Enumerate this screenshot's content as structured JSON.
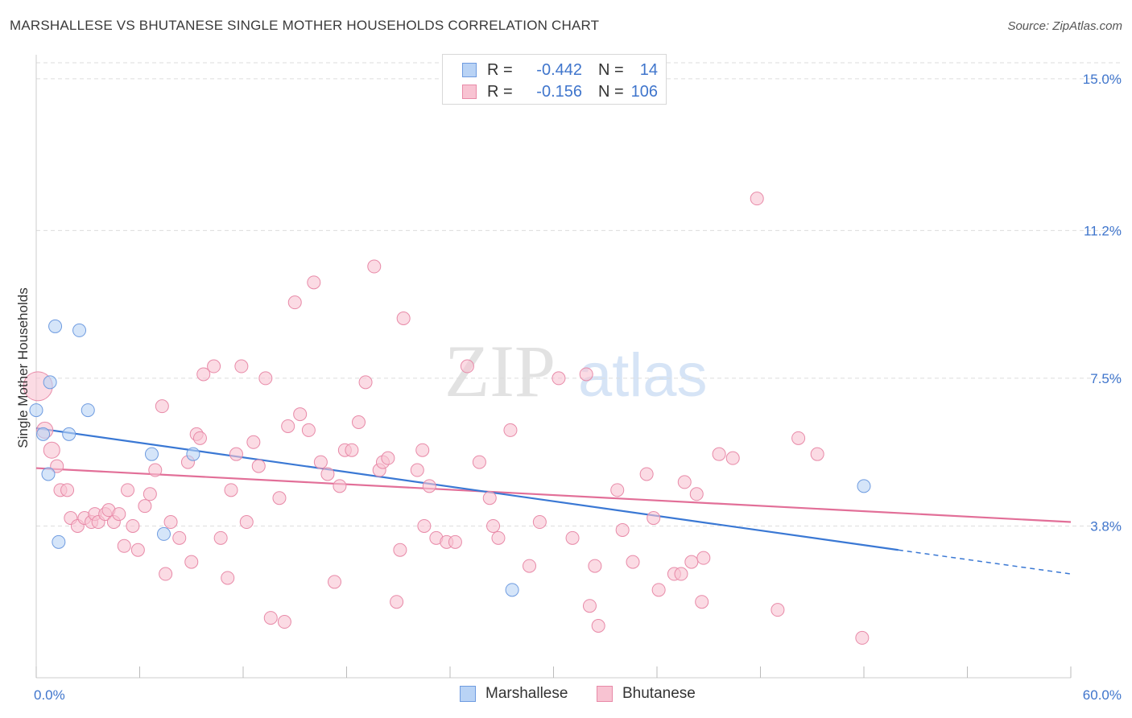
{
  "header": {
    "title": "MARSHALLESE VS BHUTANESE SINGLE MOTHER HOUSEHOLDS CORRELATION CHART",
    "source": "Source: ZipAtlas.com"
  },
  "legend_top": {
    "rows": [
      {
        "swatch_color": "#b9d3f5",
        "r_label": "R =",
        "r_value": "-0.442",
        "n_label": "N =",
        "n_value": "14"
      },
      {
        "swatch_color": "#f8c3d2",
        "r_label": "R =",
        "r_value": "-0.156",
        "n_label": "N =",
        "n_value": "106"
      }
    ]
  },
  "legend_bottom": {
    "items": [
      {
        "label": "Marshallese",
        "swatch_color": "#b9d3f5"
      },
      {
        "label": "Bhutanese",
        "swatch_color": "#f8c3d2"
      }
    ]
  },
  "watermark": {
    "part1": "ZIP",
    "part2": "atlas"
  },
  "chart_data": {
    "type": "scatter",
    "title": "MARSHALLESE VS BHUTANESE SINGLE MOTHER HOUSEHOLDS CORRELATION CHART",
    "xlabel": "",
    "ylabel": "Single Mother Households",
    "xlim": [
      0,
      60
    ],
    "ylim": [
      0,
      15.4
    ],
    "x_tick_labels": [
      "0.0%",
      "60.0%"
    ],
    "y_tick_labels": [
      "3.8%",
      "7.5%",
      "11.2%",
      "15.0%"
    ],
    "y_tick_values": [
      3.8,
      7.5,
      11.2,
      15.0
    ],
    "grid": true,
    "legend_position": "top-center",
    "colors": {
      "marshallese_fill": "#b9d3f5",
      "marshallese_stroke": "#6e9be0",
      "marshallese_line": "#3a78d4",
      "bhutanese_fill": "#f8c3d2",
      "bhutanese_stroke": "#e88aa8",
      "bhutanese_line": "#e26f98",
      "tick_label": "#3f75cc",
      "grid": "#dddddd"
    },
    "series": [
      {
        "name": "Marshallese",
        "points": [
          [
            1.1,
            8.8
          ],
          [
            2.5,
            8.7
          ],
          [
            0.8,
            7.4
          ],
          [
            0.0,
            6.7
          ],
          [
            3.0,
            6.7
          ],
          [
            1.9,
            6.1
          ],
          [
            0.4,
            6.1
          ],
          [
            0.7,
            5.1
          ],
          [
            6.7,
            5.6
          ],
          [
            9.1,
            5.6
          ],
          [
            7.4,
            3.6
          ],
          [
            1.3,
            3.4
          ],
          [
            27.6,
            2.2
          ],
          [
            48.0,
            4.8
          ]
        ],
        "trend": {
          "x0": 0.0,
          "y0": 6.25,
          "x1": 50.0,
          "y1": 3.2,
          "dash_to_x": 60.0,
          "dash_to_y": 2.6
        }
      },
      {
        "name": "Bhutanese",
        "points": [
          [
            0.1,
            7.3
          ],
          [
            0.5,
            6.2
          ],
          [
            0.9,
            5.7
          ],
          [
            1.2,
            5.3
          ],
          [
            1.4,
            4.7
          ],
          [
            1.8,
            4.7
          ],
          [
            2.0,
            4.0
          ],
          [
            2.4,
            3.8
          ],
          [
            2.8,
            4.0
          ],
          [
            3.2,
            3.9
          ],
          [
            3.4,
            4.1
          ],
          [
            3.6,
            3.9
          ],
          [
            4.0,
            4.1
          ],
          [
            4.2,
            4.2
          ],
          [
            4.5,
            3.9
          ],
          [
            4.8,
            4.1
          ],
          [
            5.1,
            3.3
          ],
          [
            5.3,
            4.7
          ],
          [
            5.6,
            3.8
          ],
          [
            5.9,
            3.2
          ],
          [
            6.3,
            4.3
          ],
          [
            6.6,
            4.6
          ],
          [
            6.9,
            5.2
          ],
          [
            7.3,
            6.8
          ],
          [
            7.5,
            2.6
          ],
          [
            7.8,
            3.9
          ],
          [
            8.3,
            3.5
          ],
          [
            8.8,
            5.4
          ],
          [
            9.0,
            2.9
          ],
          [
            9.3,
            6.1
          ],
          [
            9.5,
            6.0
          ],
          [
            9.7,
            7.6
          ],
          [
            10.3,
            7.8
          ],
          [
            10.7,
            3.5
          ],
          [
            11.1,
            2.5
          ],
          [
            11.3,
            4.7
          ],
          [
            11.6,
            5.6
          ],
          [
            11.9,
            7.8
          ],
          [
            12.2,
            3.9
          ],
          [
            12.6,
            5.9
          ],
          [
            12.9,
            5.3
          ],
          [
            13.3,
            7.5
          ],
          [
            13.6,
            1.5
          ],
          [
            14.1,
            4.5
          ],
          [
            14.4,
            1.4
          ],
          [
            14.6,
            6.3
          ],
          [
            15.0,
            9.4
          ],
          [
            15.3,
            6.6
          ],
          [
            15.8,
            6.2
          ],
          [
            16.1,
            9.9
          ],
          [
            16.5,
            5.4
          ],
          [
            16.9,
            5.1
          ],
          [
            17.3,
            2.4
          ],
          [
            17.6,
            4.8
          ],
          [
            17.9,
            5.7
          ],
          [
            18.3,
            5.7
          ],
          [
            18.7,
            6.4
          ],
          [
            19.1,
            7.4
          ],
          [
            19.6,
            10.3
          ],
          [
            19.9,
            5.2
          ],
          [
            20.1,
            5.4
          ],
          [
            20.4,
            5.5
          ],
          [
            20.9,
            1.9
          ],
          [
            21.1,
            3.2
          ],
          [
            21.3,
            9.0
          ],
          [
            22.1,
            5.2
          ],
          [
            22.4,
            5.7
          ],
          [
            22.8,
            4.8
          ],
          [
            22.5,
            3.8
          ],
          [
            23.2,
            3.5
          ],
          [
            23.8,
            3.4
          ],
          [
            24.3,
            3.4
          ],
          [
            25.0,
            7.8
          ],
          [
            25.7,
            5.4
          ],
          [
            26.3,
            4.5
          ],
          [
            26.5,
            3.8
          ],
          [
            26.8,
            3.5
          ],
          [
            27.5,
            6.2
          ],
          [
            28.6,
            2.8
          ],
          [
            29.2,
            3.9
          ],
          [
            30.3,
            7.5
          ],
          [
            31.1,
            3.5
          ],
          [
            31.9,
            7.6
          ],
          [
            32.1,
            1.8
          ],
          [
            32.4,
            2.8
          ],
          [
            32.6,
            1.3
          ],
          [
            33.7,
            4.7
          ],
          [
            34.0,
            3.7
          ],
          [
            34.6,
            2.9
          ],
          [
            35.4,
            5.1
          ],
          [
            35.8,
            4.0
          ],
          [
            36.1,
            2.2
          ],
          [
            37.0,
            2.6
          ],
          [
            37.4,
            2.6
          ],
          [
            37.6,
            4.9
          ],
          [
            38.0,
            2.9
          ],
          [
            38.3,
            4.6
          ],
          [
            38.7,
            3.0
          ],
          [
            38.6,
            1.9
          ],
          [
            39.6,
            5.6
          ],
          [
            40.4,
            5.5
          ],
          [
            41.8,
            12.0
          ],
          [
            43.0,
            1.7
          ],
          [
            44.2,
            6.0
          ],
          [
            45.3,
            5.6
          ],
          [
            47.9,
            1.0
          ]
        ],
        "trend": {
          "x0": 0.0,
          "y0": 5.25,
          "x1": 60.0,
          "y1": 3.9
        }
      }
    ]
  }
}
